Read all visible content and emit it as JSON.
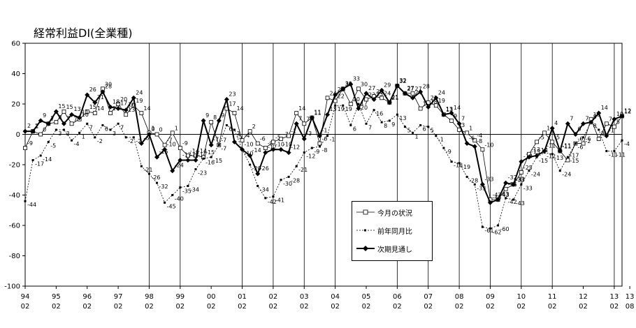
{
  "chart_data": {
    "type": "line",
    "title": "経常利益DI(全業種)",
    "ylim": [
      -100,
      60
    ],
    "yticks": [
      60,
      40,
      20,
      0,
      -20,
      -40,
      -60,
      -80,
      -100
    ],
    "x_ticks": [
      {
        "label": "94",
        "sub": "02",
        "q": 0
      },
      {
        "label": "95",
        "sub": "02",
        "q": 4
      },
      {
        "label": "96",
        "sub": "02",
        "q": 8
      },
      {
        "label": "97",
        "sub": "02",
        "q": 12
      },
      {
        "label": "98",
        "sub": "02",
        "q": 16
      },
      {
        "label": "99",
        "sub": "02",
        "q": 20
      },
      {
        "label": "00",
        "sub": "02",
        "q": 24
      },
      {
        "label": "01",
        "sub": "02",
        "q": 28
      },
      {
        "label": "02",
        "sub": "02",
        "q": 32
      },
      {
        "label": "03",
        "sub": "02",
        "q": 36
      },
      {
        "label": "04",
        "sub": "02",
        "q": 40
      },
      {
        "label": "05",
        "sub": "02",
        "q": 44
      },
      {
        "label": "06",
        "sub": "02",
        "q": 48
      },
      {
        "label": "07",
        "sub": "02",
        "q": 52
      },
      {
        "label": "08",
        "sub": "02",
        "q": 56
      },
      {
        "label": "09",
        "sub": "02",
        "q": 60
      },
      {
        "label": "10",
        "sub": "02",
        "q": 64
      },
      {
        "label": "11",
        "sub": "02",
        "q": 68
      },
      {
        "label": "12",
        "sub": "02",
        "q": 72
      },
      {
        "label": "13",
        "sub": "02",
        "q": 76
      },
      {
        "label": "13",
        "sub": "08",
        "q": 78
      }
    ],
    "vertical_lines_q": [
      16,
      20,
      28,
      32,
      36,
      40,
      48,
      52,
      56,
      60,
      64,
      68,
      76
    ],
    "series": [
      {
        "name": "今月の状況",
        "marker": "open-square",
        "line": "thin",
        "values": [
          -9,
          2,
          0,
          7,
          8,
          15,
          7,
          10,
          15,
          14,
          30,
          14,
          20,
          13,
          19,
          14,
          1,
          0,
          -7,
          1,
          -9,
          -14,
          -14,
          -15,
          8,
          -7,
          17,
          14,
          -4,
          2,
          -6,
          -9,
          -5,
          -3,
          -1,
          14,
          7,
          11,
          -6,
          24,
          22,
          30,
          20,
          30,
          23,
          25,
          24,
          21,
          32,
          27,
          27,
          17,
          21,
          19,
          13,
          9,
          3,
          1,
          -4,
          -10,
          -43,
          -43,
          -36,
          -33,
          -25,
          -13,
          -5,
          1,
          -5,
          -11,
          -17,
          -6,
          -6,
          10,
          -3,
          7,
          5,
          12
        ]
      },
      {
        "name": "前年同月比",
        "marker": "small-dot",
        "line": "dashed",
        "values": [
          -44,
          -17,
          -14,
          -5,
          3,
          3,
          -4,
          1,
          7,
          -2,
          6,
          3,
          7,
          -2,
          -2,
          -21,
          -26,
          -32,
          -45,
          -40,
          -35,
          -34,
          -23,
          -16,
          -15,
          -7,
          6,
          3,
          -10,
          -20,
          -34,
          -42,
          -41,
          -30,
          -28,
          -21,
          -12,
          -9,
          -8,
          -1,
          19,
          19,
          6,
          20,
          7,
          16,
          8,
          9,
          13,
          5,
          1,
          6,
          5,
          -1,
          -9,
          -18,
          -19,
          -28,
          -33,
          -61,
          -62,
          -60,
          -42,
          -43,
          -33,
          -24,
          -15,
          -12,
          -13,
          -24,
          -15,
          -6,
          -2,
          8,
          3,
          -11,
          -11,
          -4
        ]
      },
      {
        "name": "次期見通し",
        "marker": "filled-diamond",
        "line": "thick",
        "values": [
          2,
          2,
          9,
          7,
          15,
          7,
          13,
          11,
          26,
          21,
          28,
          18,
          17,
          16,
          24,
          -6,
          0,
          -15,
          -10,
          -24,
          -17,
          -17,
          -17,
          9,
          -7,
          9,
          23,
          -5,
          -10,
          -14,
          -26,
          -12,
          -10,
          -10,
          -12,
          7,
          -3,
          11,
          -1,
          13,
          26,
          30,
          33,
          17,
          27,
          23,
          29,
          21,
          32,
          27,
          24,
          28,
          18,
          24,
          13,
          14,
          7,
          -6,
          -8,
          -33,
          -45,
          -43,
          -32,
          -33,
          -18,
          -15,
          -14,
          -11,
          4,
          -11,
          7,
          0,
          7,
          8,
          14,
          -1,
          10,
          12
        ]
      }
    ],
    "legend_position": "center-bottom",
    "grid": false
  }
}
